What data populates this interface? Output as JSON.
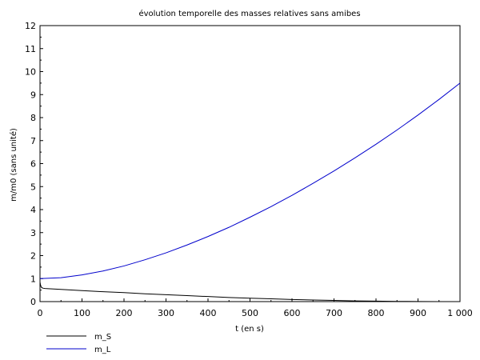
{
  "chart_data": {
    "type": "line",
    "title": "évolution temporelle des masses relatives sans amibes",
    "xlabel": "t (en s)",
    "ylabel": "m/m0 (sans unité)",
    "xlim": [
      0,
      1000
    ],
    "ylim": [
      0,
      12
    ],
    "grid": false,
    "legend_position": "bottom-left",
    "x_ticks": [
      0,
      100,
      200,
      300,
      400,
      500,
      600,
      700,
      800,
      900,
      1000
    ],
    "x_tick_labels": [
      "0",
      "100",
      "200",
      "300",
      "400",
      "500",
      "600",
      "700",
      "800",
      "900",
      "1 000"
    ],
    "y_ticks": [
      0,
      1,
      2,
      3,
      4,
      5,
      6,
      7,
      8,
      9,
      10,
      11,
      12
    ],
    "y_tick_labels": [
      "0",
      "1",
      "2",
      "3",
      "4",
      "5",
      "6",
      "7",
      "8",
      "9",
      "10",
      "11",
      "12"
    ],
    "series": [
      {
        "name": "m_S",
        "color": "#000000",
        "x": [
          0,
          1,
          2,
          3,
          5,
          8,
          12,
          20,
          50,
          100,
          150,
          200,
          250,
          300,
          350,
          400,
          450,
          500,
          550,
          600,
          650,
          700,
          750,
          800,
          850,
          900,
          950,
          1000
        ],
        "y": [
          0.85,
          0.75,
          0.68,
          0.63,
          0.6,
          0.58,
          0.57,
          0.56,
          0.53,
          0.48,
          0.43,
          0.39,
          0.34,
          0.3,
          0.26,
          0.22,
          0.18,
          0.15,
          0.12,
          0.09,
          0.07,
          0.05,
          0.03,
          0.02,
          0.01,
          0.005,
          0.002,
          0.0
        ]
      },
      {
        "name": "m_L",
        "color": "#0000cc",
        "x": [
          0,
          50,
          100,
          150,
          200,
          250,
          300,
          350,
          400,
          450,
          500,
          550,
          600,
          650,
          700,
          750,
          800,
          850,
          900,
          950,
          1000
        ],
        "y": [
          1.0,
          1.04,
          1.16,
          1.33,
          1.55,
          1.82,
          2.12,
          2.46,
          2.83,
          3.23,
          3.67,
          4.13,
          4.62,
          5.14,
          5.68,
          6.25,
          6.84,
          7.46,
          8.11,
          8.79,
          9.5
        ]
      }
    ]
  }
}
